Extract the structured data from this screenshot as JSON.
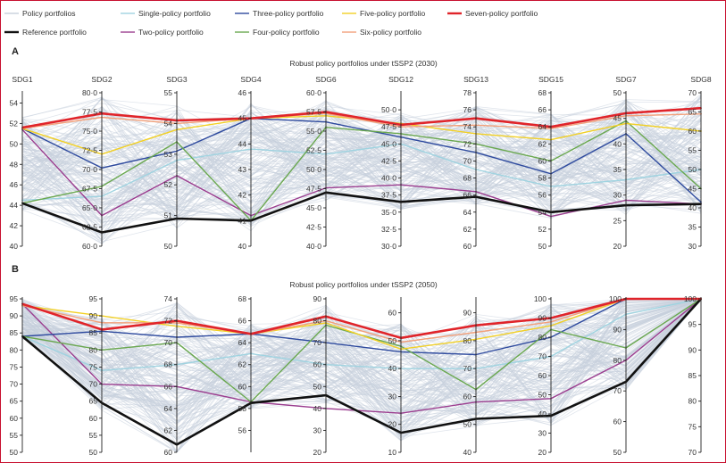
{
  "legend": [
    {
      "key": "policy",
      "label": "Policy portfolios",
      "color": "#c7d0dc"
    },
    {
      "key": "single",
      "label": "Single-policy portfolio",
      "color": "#9fd3e0"
    },
    {
      "key": "three",
      "label": "Three-policy portfolio",
      "color": "#2e4a9e"
    },
    {
      "key": "five",
      "label": "Five-policy portfolio",
      "color": "#f2d024"
    },
    {
      "key": "seven",
      "label": "Seven-policy portfolio",
      "color": "#e0242a"
    },
    {
      "key": "reference",
      "label": "Reference portfolio",
      "color": "#111111"
    },
    {
      "key": "two",
      "label": "Two-policy portfolio",
      "color": "#9b3d8f"
    },
    {
      "key": "four",
      "label": "Four-policy portfolio",
      "color": "#6aa84f"
    },
    {
      "key": "six",
      "label": "Six-policy portfolio",
      "color": "#f2a07a"
    }
  ],
  "chart_data": [
    {
      "type": "parallel-coordinates",
      "panel": "A",
      "title": "Robust policy portfolios under tSSP2 (2030)",
      "axes": [
        {
          "name": "SDG1",
          "min": 40,
          "max": 55,
          "ticks": [
            "40",
            "42",
            "44",
            "46",
            "48",
            "50",
            "52",
            "54"
          ],
          "tickvals": [
            40,
            42,
            44,
            46,
            48,
            50,
            52,
            54
          ]
        },
        {
          "name": "SDG2",
          "min": 60,
          "max": 80,
          "ticks": [
            "60·0",
            "62·5",
            "65·0",
            "67·5",
            "70·0",
            "72·5",
            "75·0",
            "77·5",
            "80·0"
          ],
          "tickvals": [
            60,
            62.5,
            65,
            67.5,
            70,
            72.5,
            75,
            77.5,
            80
          ]
        },
        {
          "name": "SDG3",
          "min": 50,
          "max": 55,
          "ticks": [
            "50",
            "51",
            "52",
            "53",
            "54",
            "55"
          ],
          "tickvals": [
            50,
            51,
            52,
            53,
            54,
            55
          ]
        },
        {
          "name": "SDG4",
          "min": 40,
          "max": 46,
          "ticks": [
            "40",
            "41",
            "42",
            "43",
            "44",
            "45",
            "46"
          ],
          "tickvals": [
            40,
            41,
            42,
            43,
            44,
            45,
            46
          ]
        },
        {
          "name": "SDG6",
          "min": 40,
          "max": 60,
          "ticks": [
            "40·0",
            "42·5",
            "45·0",
            "47·5",
            "50·0",
            "52·5",
            "55·0",
            "57·5",
            "60·0"
          ],
          "tickvals": [
            40,
            42.5,
            45,
            47.5,
            50,
            52.5,
            55,
            57.5,
            60
          ]
        },
        {
          "name": "SDG12",
          "min": 30,
          "max": 52.5,
          "ticks": [
            "30·0",
            "32·5",
            "35·0",
            "37·5",
            "40·0",
            "42·5",
            "45·0",
            "47·5",
            "50·0"
          ],
          "tickvals": [
            30,
            32.5,
            35,
            37.5,
            40,
            42.5,
            45,
            47.5,
            50
          ]
        },
        {
          "name": "SDG13",
          "min": 60,
          "max": 78,
          "ticks": [
            "60",
            "62",
            "64",
            "66",
            "68",
            "70",
            "72",
            "74",
            "76",
            "78"
          ],
          "tickvals": [
            60,
            62,
            64,
            66,
            68,
            70,
            72,
            74,
            76,
            78
          ]
        },
        {
          "name": "SDG15",
          "min": 50,
          "max": 68,
          "ticks": [
            "50",
            "52",
            "54",
            "56",
            "58",
            "60",
            "62",
            "64",
            "66",
            "68"
          ],
          "tickvals": [
            50,
            52,
            54,
            56,
            58,
            60,
            62,
            64,
            66,
            68
          ]
        },
        {
          "name": "SDG7",
          "min": 20,
          "max": 50,
          "ticks": [
            "20",
            "25",
            "30",
            "35",
            "40",
            "45",
            "50"
          ],
          "tickvals": [
            20,
            25,
            30,
            35,
            40,
            45,
            50
          ]
        },
        {
          "name": "SDG8",
          "min": 30,
          "max": 70,
          "ticks": [
            "30",
            "35",
            "40",
            "45",
            "50",
            "55",
            "60",
            "65",
            "70"
          ],
          "tickvals": [
            30,
            35,
            40,
            45,
            50,
            55,
            60,
            65,
            70
          ]
        }
      ],
      "series": [
        {
          "name": "Reference portfolio",
          "key": "reference",
          "values": [
            44.2,
            61.8,
            50.9,
            41.0,
            47.0,
            36.5,
            65.8,
            54.0,
            28.0,
            41.0
          ]
        },
        {
          "name": "Seven-policy portfolio",
          "key": "seven",
          "values": [
            51.6,
            77.3,
            54.1,
            45.0,
            57.5,
            47.8,
            75.0,
            64.0,
            46.0,
            66.0
          ]
        },
        {
          "name": "Six-policy portfolio",
          "key": "six",
          "values": [
            51.5,
            76.8,
            54.0,
            45.0,
            57.3,
            47.5,
            74.2,
            63.8,
            45.5,
            64.5
          ]
        },
        {
          "name": "Five-policy portfolio",
          "key": "five",
          "values": [
            51.5,
            72.0,
            53.8,
            45.0,
            57.0,
            48.0,
            73.2,
            62.5,
            44.0,
            60.0
          ]
        },
        {
          "name": "Four-policy portfolio",
          "key": "four",
          "values": [
            44.2,
            67.8,
            53.4,
            41.0,
            55.5,
            46.5,
            72.0,
            60.0,
            44.5,
            45.0
          ]
        },
        {
          "name": "Three-policy portfolio",
          "key": "three",
          "values": [
            51.5,
            70.2,
            53.1,
            45.0,
            56.2,
            46.0,
            71.0,
            58.5,
            42.0,
            41.5
          ]
        },
        {
          "name": "Two-policy portfolio",
          "key": "two",
          "values": [
            51.4,
            64.0,
            52.3,
            41.2,
            47.6,
            39.0,
            66.4,
            53.5,
            29.0,
            41.0
          ]
        },
        {
          "name": "Single-policy portfolio",
          "key": "single",
          "values": [
            44.5,
            66.5,
            52.8,
            43.8,
            52.0,
            45.0,
            69.0,
            57.0,
            33.0,
            50.0
          ]
        }
      ]
    },
    {
      "type": "parallel-coordinates",
      "panel": "B",
      "title": "Robust policy portfolios under tSSP2 (2050)",
      "axes": [
        {
          "name": "SDG1",
          "min": 50,
          "max": 95,
          "ticks": [
            "50",
            "55",
            "60",
            "65",
            "70",
            "75",
            "80",
            "85",
            "90",
            "95"
          ],
          "tickvals": [
            50,
            55,
            60,
            65,
            70,
            75,
            80,
            85,
            90,
            95
          ]
        },
        {
          "name": "SDG2",
          "min": 50,
          "max": 95,
          "ticks": [
            "50",
            "55",
            "60",
            "65",
            "70",
            "75",
            "80",
            "85",
            "90",
            "95"
          ],
          "tickvals": [
            50,
            55,
            60,
            65,
            70,
            75,
            80,
            85,
            90,
            95
          ]
        },
        {
          "name": "SDG3",
          "min": 60,
          "max": 74,
          "ticks": [
            "60",
            "62",
            "64",
            "66",
            "68",
            "70",
            "72",
            "74"
          ],
          "tickvals": [
            60,
            62,
            64,
            66,
            68,
            70,
            72,
            74
          ]
        },
        {
          "name": "SDG4",
          "min": 54,
          "max": 68,
          "ticks": [
            "56",
            "58",
            "60",
            "62",
            "64",
            "66",
            "68"
          ],
          "tickvals": [
            56,
            58,
            60,
            62,
            64,
            66,
            68
          ]
        },
        {
          "name": "SDG6",
          "min": 20,
          "max": 90,
          "ticks": [
            "20",
            "30",
            "40",
            "50",
            "60",
            "70",
            "80",
            "90"
          ],
          "tickvals": [
            20,
            30,
            40,
            50,
            60,
            70,
            80,
            90
          ]
        },
        {
          "name": "SDG12",
          "min": 10,
          "max": 65,
          "ticks": [
            "10",
            "20",
            "30",
            "40",
            "50",
            "60"
          ],
          "tickvals": [
            10,
            20,
            30,
            40,
            50,
            60
          ]
        },
        {
          "name": "SDG13",
          "min": 40,
          "max": 95,
          "ticks": [
            "40",
            "50",
            "60",
            "70",
            "80",
            "90"
          ],
          "tickvals": [
            40,
            50,
            60,
            70,
            80,
            90
          ]
        },
        {
          "name": "SDG15",
          "min": 20,
          "max": 100,
          "ticks": [
            "20",
            "30",
            "40",
            "50",
            "60",
            "70",
            "80",
            "90",
            "100"
          ],
          "tickvals": [
            20,
            30,
            40,
            50,
            60,
            70,
            80,
            90,
            100
          ]
        },
        {
          "name": "SDG7",
          "min": 50,
          "max": 100,
          "ticks": [
            "50",
            "60",
            "70",
            "80",
            "90",
            "100"
          ],
          "tickvals": [
            50,
            60,
            70,
            80,
            90,
            100
          ]
        },
        {
          "name": "SDG8",
          "min": 70,
          "max": 100,
          "ticks": [
            "70",
            "75",
            "80",
            "85",
            "90",
            "95",
            "100"
          ],
          "tickvals": [
            70,
            75,
            80,
            85,
            90,
            95,
            100
          ]
        }
      ],
      "series": [
        {
          "name": "Reference portfolio",
          "key": "reference",
          "values": [
            84.0,
            64.5,
            60.7,
            58.5,
            46.0,
            17.0,
            52.0,
            39.0,
            73.0,
            100.0
          ]
        },
        {
          "name": "Seven-policy portfolio",
          "key": "seven",
          "values": [
            93.5,
            86.0,
            72.0,
            64.8,
            82.0,
            51.0,
            85.5,
            90.0,
            100.0,
            100.0
          ]
        },
        {
          "name": "Six-policy portfolio",
          "key": "six",
          "values": [
            93.0,
            88.0,
            71.8,
            64.8,
            80.0,
            49.5,
            83.0,
            88.0,
            100.0,
            100.0
          ]
        },
        {
          "name": "Five-policy portfolio",
          "key": "five",
          "values": [
            93.0,
            90.0,
            71.5,
            64.8,
            79.0,
            47.0,
            80.5,
            86.0,
            100.0,
            100.0
          ]
        },
        {
          "name": "Four-policy portfolio",
          "key": "four",
          "values": [
            84.0,
            80.0,
            70.0,
            58.6,
            78.0,
            48.0,
            62.5,
            84.0,
            84.0,
            100.0
          ]
        },
        {
          "name": "Three-policy portfolio",
          "key": "three",
          "values": [
            84.0,
            85.5,
            70.5,
            64.8,
            70.0,
            46.0,
            75.0,
            80.0,
            100.0,
            100.0
          ]
        },
        {
          "name": "Two-policy portfolio",
          "key": "two",
          "values": [
            93.5,
            70.0,
            66.0,
            58.6,
            40.0,
            24.0,
            58.0,
            48.0,
            80.0,
            100.0
          ]
        },
        {
          "name": "Single-policy portfolio",
          "key": "single",
          "values": [
            84.0,
            74.0,
            68.0,
            63.0,
            60.0,
            40.0,
            70.0,
            70.0,
            95.0,
            100.0
          ]
        }
      ]
    }
  ]
}
